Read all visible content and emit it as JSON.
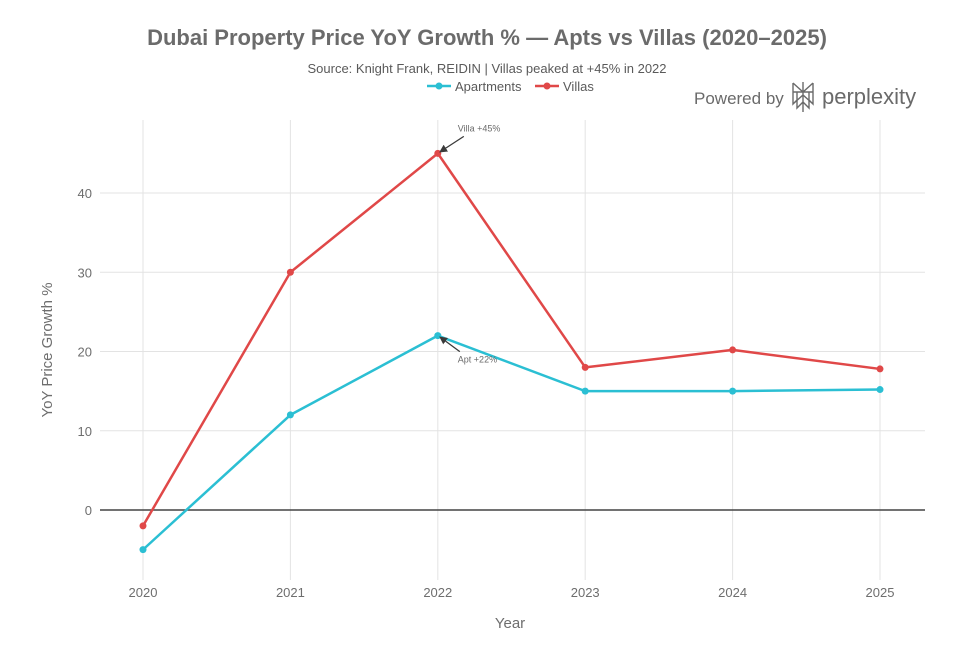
{
  "chart_data": {
    "type": "line",
    "title": "Dubai Property Price YoY Growth % — Apts vs Villas (2020–2025)",
    "subtitle": "Source: Knight Frank, REIDIN | Villas peaked at +45% in 2022",
    "xlabel": "Year",
    "ylabel": "YoY Price Growth %",
    "x": [
      "2020",
      "2021",
      "2022",
      "2023",
      "2024",
      "2025"
    ],
    "yticks": [
      0,
      10,
      20,
      30,
      40
    ],
    "ylim": [
      -9,
      49
    ],
    "grid": true,
    "legend_position": "top-center",
    "series": [
      {
        "name": "Apartments",
        "color": "#2bbfd3",
        "values": [
          -5,
          12,
          22,
          15,
          15,
          15.2
        ]
      },
      {
        "name": "Villas",
        "color": "#e04848",
        "values": [
          -2,
          30,
          45,
          18,
          20.2,
          17.8
        ]
      }
    ],
    "annotations": [
      {
        "text": "Villa +45%",
        "x": "2022",
        "y": 45,
        "series": "Villas"
      },
      {
        "text": "Apt +22%",
        "x": "2022",
        "y": 22,
        "series": "Apartments"
      }
    ]
  },
  "branding": {
    "powered_by": "Powered by",
    "brand_name": "perplexity"
  }
}
